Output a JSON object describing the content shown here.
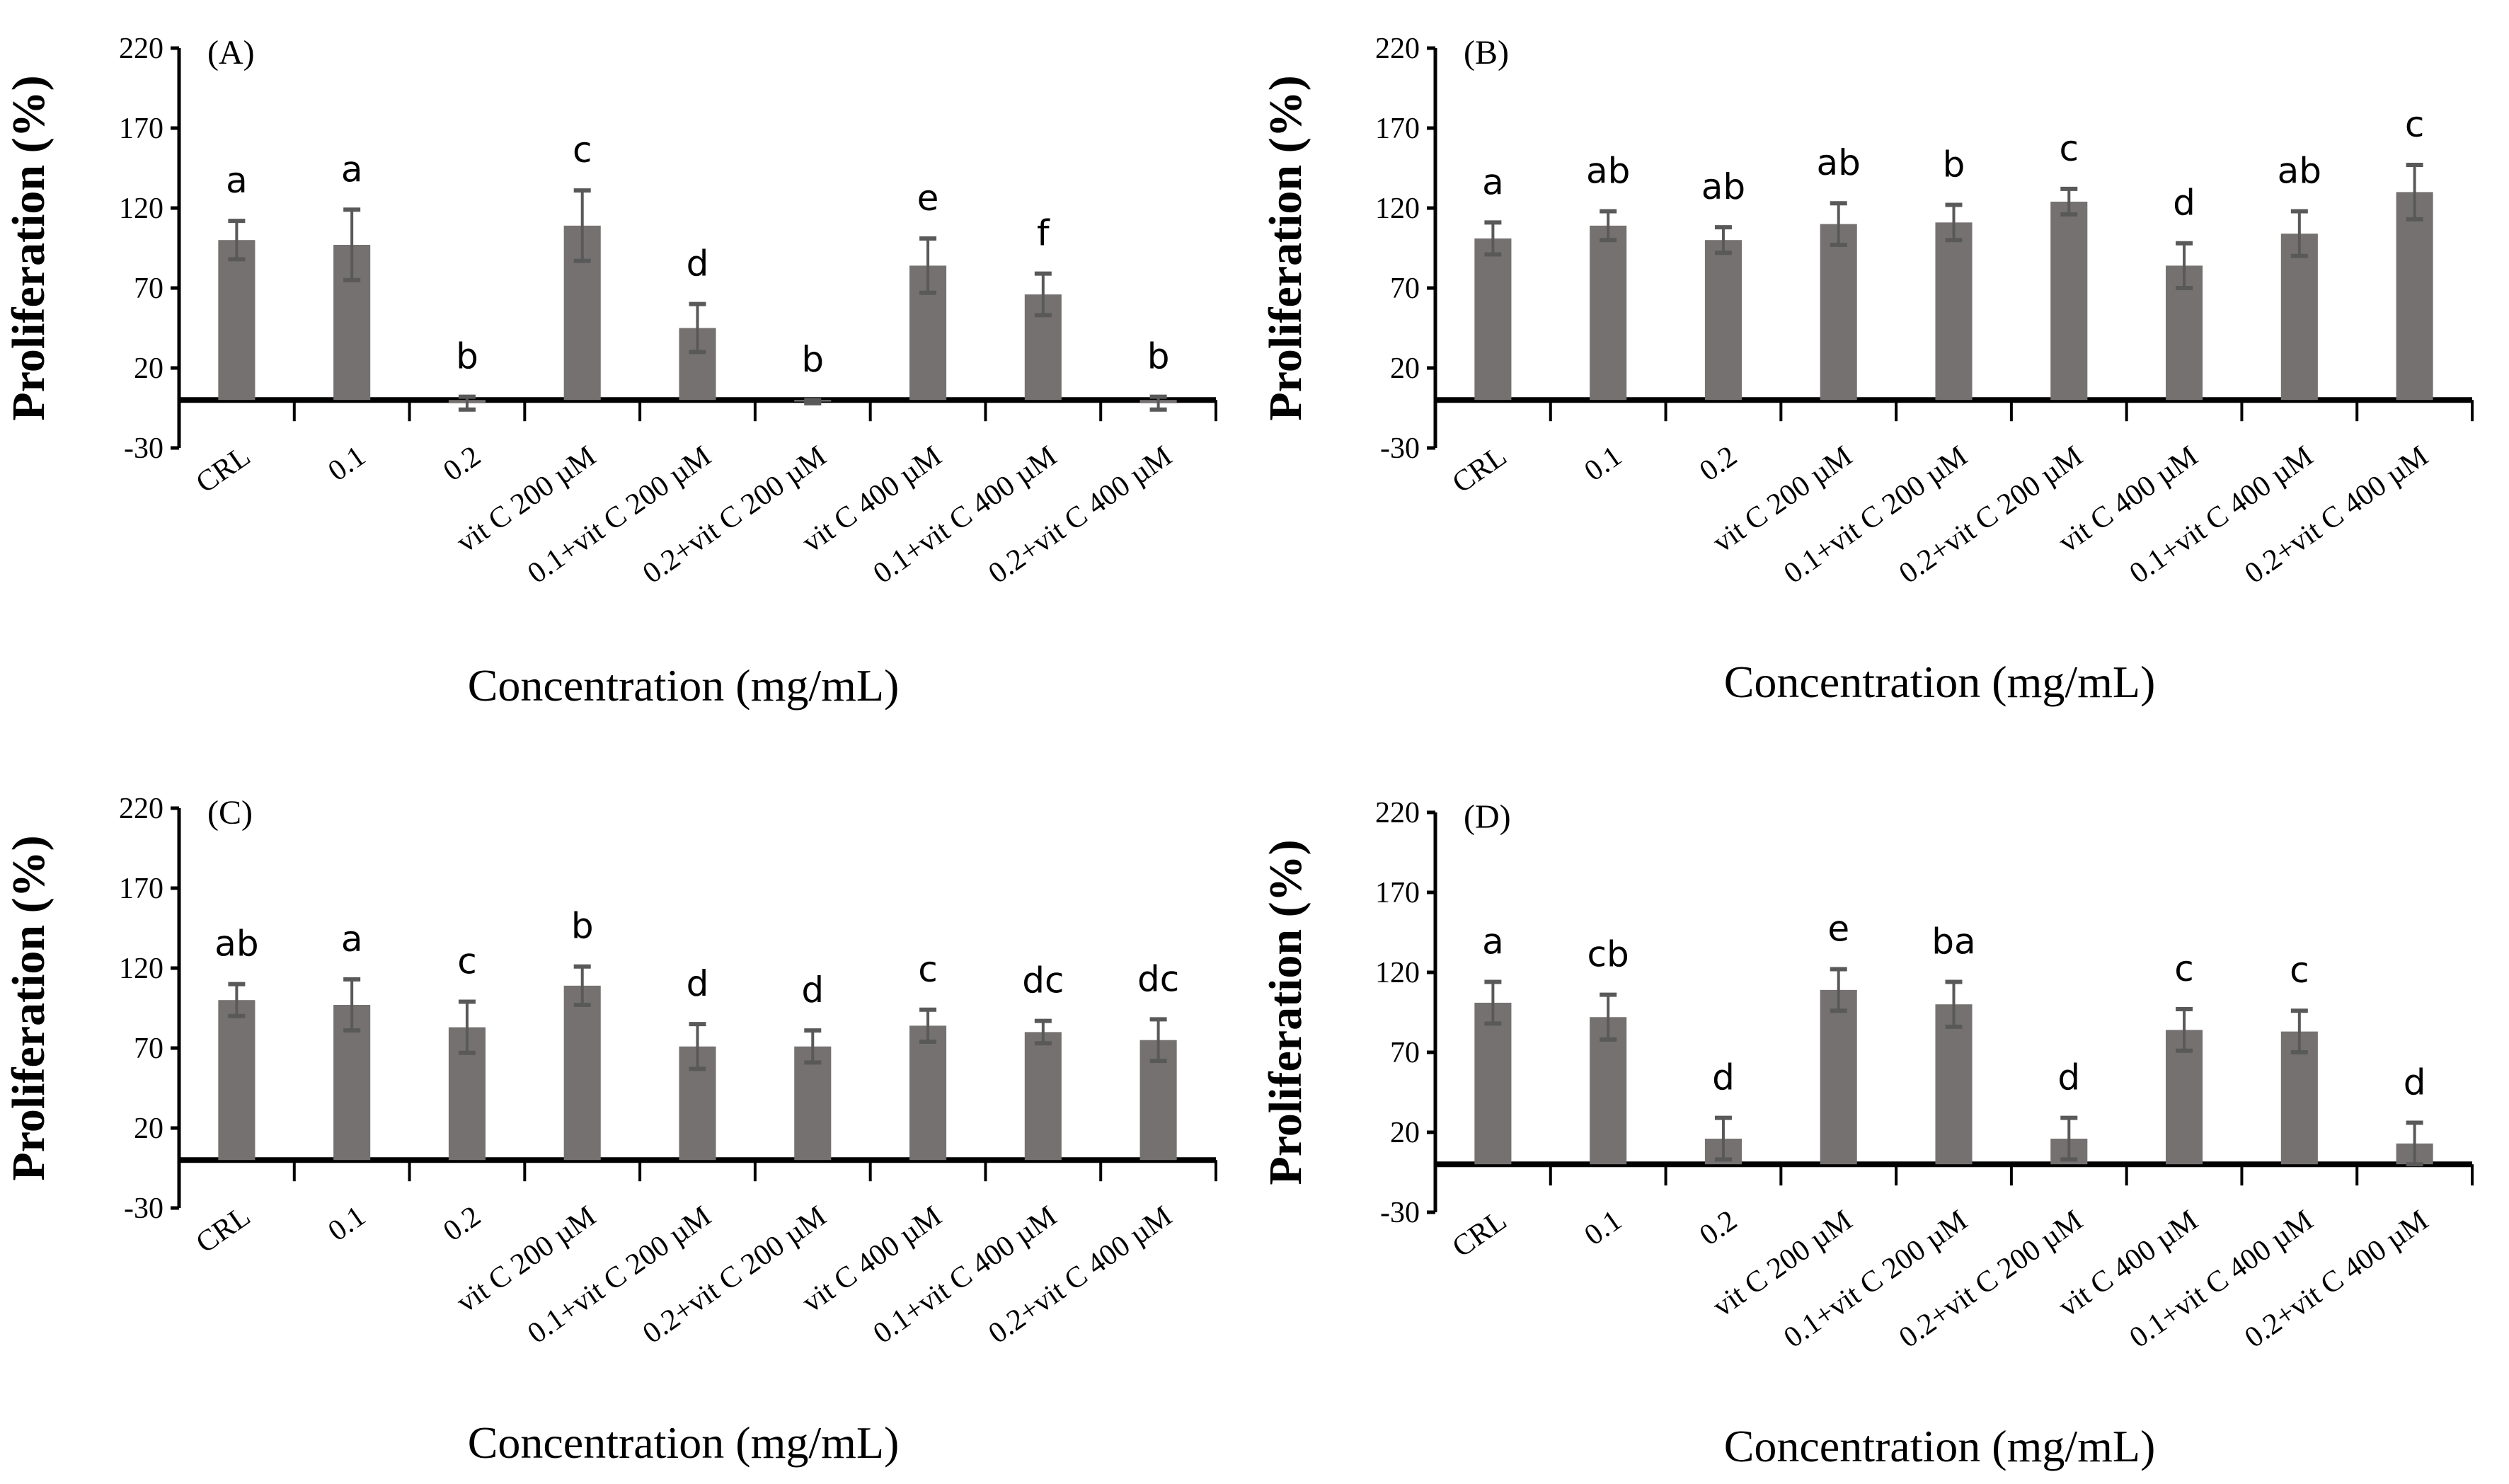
{
  "colors": {
    "bar": "#767171",
    "error": "#595959",
    "axis": "#000000"
  },
  "chart_data": [
    {
      "type": "bar",
      "panel_label": "(A)",
      "ylabel": "Proliferation (%)",
      "xlabel": "Concentration (mg/mL)",
      "ylim": [
        -30,
        220
      ],
      "yticks": [
        -30,
        20,
        70,
        120,
        170,
        220
      ],
      "categories": [
        "CRL",
        "0.1",
        "0.2",
        "vit C 200 µM",
        "0.1+vit C 200 µM",
        "0.2+vit C 200 µM",
        "vit C 400 µM",
        "0.1+vit C 400 µM",
        "0.2+vit C 400 µM"
      ],
      "values": [
        100,
        97,
        -2,
        109,
        45,
        -1,
        84,
        66,
        -2
      ],
      "errors": [
        12,
        22,
        4,
        22,
        15,
        1,
        17,
        13,
        4
      ],
      "letters": [
        "a",
        "a",
        "b",
        "c",
        "d",
        "b",
        "e",
        "f",
        "b"
      ]
    },
    {
      "type": "bar",
      "panel_label": "(B)",
      "ylabel": "Proliferation (%)",
      "xlabel": "Concentration (mg/mL)",
      "ylim": [
        -30,
        220
      ],
      "yticks": [
        -30,
        20,
        70,
        120,
        170,
        220
      ],
      "categories": [
        "CRL",
        "0.1",
        "0.2",
        "vit C 200 µM",
        "0.1+vit C 200 µM",
        "0.2+vit C 200 µM",
        "vit C 400 µM",
        "0.1+vit C 400 µM",
        "0.2+vit C 400 µM"
      ],
      "values": [
        101,
        109,
        100,
        110,
        111,
        124,
        84,
        104,
        130
      ],
      "errors": [
        10,
        9,
        8,
        13,
        11,
        8,
        14,
        14,
        17
      ],
      "letters": [
        "a",
        "ab",
        "ab",
        "ab",
        "b",
        "c",
        "d",
        "ab",
        "c"
      ]
    },
    {
      "type": "bar",
      "panel_label": "(C)",
      "ylabel": "Proliferation (%)",
      "xlabel": "Concentration (mg/mL)",
      "ylim": [
        -30,
        220
      ],
      "yticks": [
        -30,
        20,
        70,
        120,
        170,
        220
      ],
      "categories": [
        "CRL",
        "0.1",
        "0.2",
        "vit C 200 µM",
        "0.1+vit C 200 µM",
        "0.2+vit C 200 µM",
        "vit C 400 µM",
        "0.1+vit C 400 µM",
        "0.2+vit C 400 µM"
      ],
      "values": [
        100,
        97,
        83,
        109,
        71,
        71,
        84,
        80,
        75
      ],
      "errors": [
        10,
        16,
        16,
        12,
        14,
        10,
        10,
        7,
        13
      ],
      "letters": [
        "ab",
        "a",
        "c",
        "b",
        "d",
        "d",
        "c",
        "dc",
        "dc"
      ]
    },
    {
      "type": "bar",
      "panel_label": "(D)",
      "ylabel": "Proliferation (%)",
      "xlabel": "Concentration (mg/mL)",
      "ylim": [
        -30,
        220
      ],
      "yticks": [
        -30,
        20,
        70,
        120,
        170,
        220
      ],
      "categories": [
        "CRL",
        "0.1",
        "0.2",
        "vit C 200 µM",
        "0.1+vit C 200 µM",
        "0.2+vit C 200 µM",
        "vit C 400 µM",
        "0.1+vit C 400 µM",
        "0.2+vit C 400 µM"
      ],
      "values": [
        101,
        92,
        16,
        109,
        100,
        16,
        84,
        83,
        13
      ],
      "errors": [
        13,
        14,
        13,
        13,
        14,
        13,
        13,
        13,
        13
      ],
      "letters": [
        "a",
        "cb",
        "d",
        "e",
        "ba",
        "d",
        "c",
        "c",
        "d"
      ]
    }
  ]
}
